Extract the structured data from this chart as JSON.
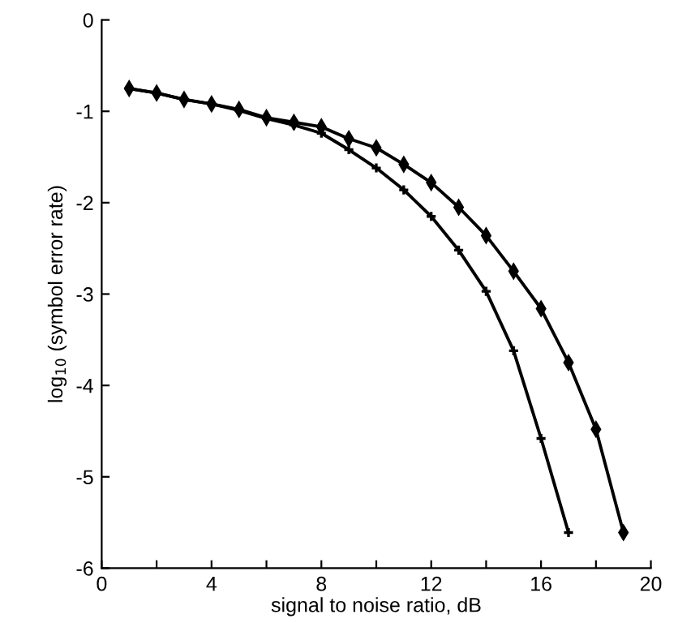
{
  "chart_data": {
    "type": "line",
    "xlabel": "signal to noise ratio, dB",
    "ylabel": "log$_{10}$ (symbol error rate)",
    "xlim": [
      0,
      20
    ],
    "ylim": [
      -6,
      0
    ],
    "xticks": [
      0,
      {
        "value": 2,
        "label": null
      },
      4,
      {
        "value": 6,
        "label": null
      },
      8,
      {
        "value": 10,
        "label": null
      },
      12,
      {
        "value": 14,
        "label": null
      },
      16,
      {
        "value": 18,
        "label": null
      },
      20
    ],
    "yticks": [
      -6,
      -5,
      -4,
      -3,
      -2,
      -1,
      0
    ],
    "grid": false,
    "marker": "diamond",
    "line_style": "solid",
    "series": [
      {
        "color": "#000000",
        "x": [
          1,
          2,
          3,
          4,
          5,
          6,
          7,
          8,
          9,
          10,
          11,
          12,
          13,
          14,
          15,
          16,
          17,
          18,
          19
        ],
        "values": [
          -0.75,
          -0.8,
          -0.87,
          -0.92,
          -0.98,
          -1.07,
          -1.12,
          -1.17,
          -1.3,
          -1.4,
          -1.58,
          -1.78,
          -2.05,
          -2.36,
          -2.75,
          -3.16,
          -3.75,
          -4.48,
          -5.61
        ]
      },
      {
        "color": "#000000",
        "marker": "cross",
        "x": [
          1,
          2,
          3,
          4,
          5,
          6,
          7,
          8,
          9,
          10,
          11,
          12,
          13,
          14,
          15,
          16,
          17
        ],
        "values": [
          -0.75,
          -0.8,
          -0.87,
          -0.92,
          -0.99,
          -1.08,
          -1.15,
          -1.24,
          -1.42,
          -1.62,
          -1.86,
          -2.15,
          -2.52,
          -2.97,
          -3.62,
          -4.58,
          -5.61
        ]
      }
    ]
  }
}
